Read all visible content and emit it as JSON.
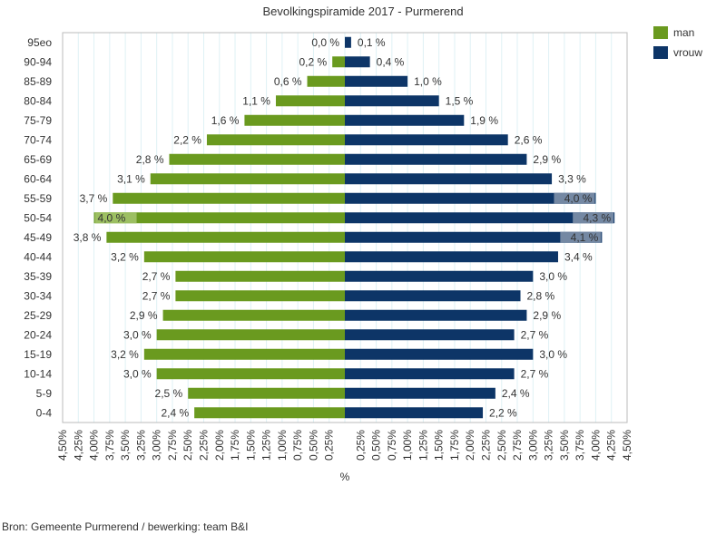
{
  "chart_data": {
    "type": "bar",
    "orientation": "horizontal-pyramid",
    "title": "Bevolkingspiramide 2017 - Purmerend",
    "xlabel": "%",
    "ylabel": "",
    "xlim": [
      -4.5,
      4.5
    ],
    "grid": true,
    "legend_position": "top-right",
    "categories": [
      "95eo",
      "90-94",
      "85-89",
      "80-84",
      "75-79",
      "70-74",
      "65-69",
      "60-64",
      "55-59",
      "50-54",
      "45-49",
      "40-44",
      "35-39",
      "30-34",
      "25-29",
      "20-24",
      "15-19",
      "10-14",
      "5-9",
      "0-4"
    ],
    "series": [
      {
        "name": "man",
        "color": "#6a9a1f",
        "values": [
          0.0,
          0.2,
          0.6,
          1.1,
          1.6,
          2.2,
          2.8,
          3.1,
          3.7,
          4.0,
          3.8,
          3.2,
          2.7,
          2.7,
          2.9,
          3.0,
          3.2,
          3.0,
          2.5,
          2.4
        ],
        "labels": [
          "0,0 %",
          "0,2 %",
          "0,6 %",
          "1,1 %",
          "1,6 %",
          "2,2 %",
          "2,8 %",
          "3,1 %",
          "3,7 %",
          "4,0 %",
          "3,8 %",
          "3,2 %",
          "2,7 %",
          "2,7 %",
          "2,9 %",
          "3,0 %",
          "3,2 %",
          "3,0 %",
          "2,5 %",
          "2,4 %"
        ]
      },
      {
        "name": "vrouw",
        "color": "#0d3567",
        "values": [
          0.1,
          0.4,
          1.0,
          1.5,
          1.9,
          2.6,
          2.9,
          3.3,
          4.0,
          4.3,
          4.1,
          3.4,
          3.0,
          2.8,
          2.9,
          2.7,
          3.0,
          2.7,
          2.4,
          2.2
        ],
        "labels": [
          "0,1 %",
          "0,4 %",
          "1,0 %",
          "1,5 %",
          "1,9 %",
          "2,6 %",
          "2,9 %",
          "3,3 %",
          "4,0 %",
          "4,3 %",
          "4,1 %",
          "3,4 %",
          "3,0 %",
          "2,8 %",
          "2,9 %",
          "2,7 %",
          "3,0 %",
          "2,7 %",
          "2,4 %",
          "2,2 %"
        ]
      }
    ],
    "x_tick_labels": [
      "4,50%",
      "4,25%",
      "4,00%",
      "3,75%",
      "3,50%",
      "3,25%",
      "3,00%",
      "2,75%",
      "2,50%",
      "2,25%",
      "2,00%",
      "1,75%",
      "1,50%",
      "1,25%",
      "1,00%",
      "0,75%",
      "0,50%",
      "0,25%",
      "",
      "0,25%",
      "0,50%",
      "0,75%",
      "1,00%",
      "1,25%",
      "1,50%",
      "1,75%",
      "2,00%",
      "2,25%",
      "2,50%",
      "2,75%",
      "3,00%",
      "3,25%",
      "3,50%",
      "3,75%",
      "4,00%",
      "4,25%",
      "4,50%"
    ]
  },
  "source_note": "Bron: Gemeente Purmerend / bewerking: team B&I"
}
